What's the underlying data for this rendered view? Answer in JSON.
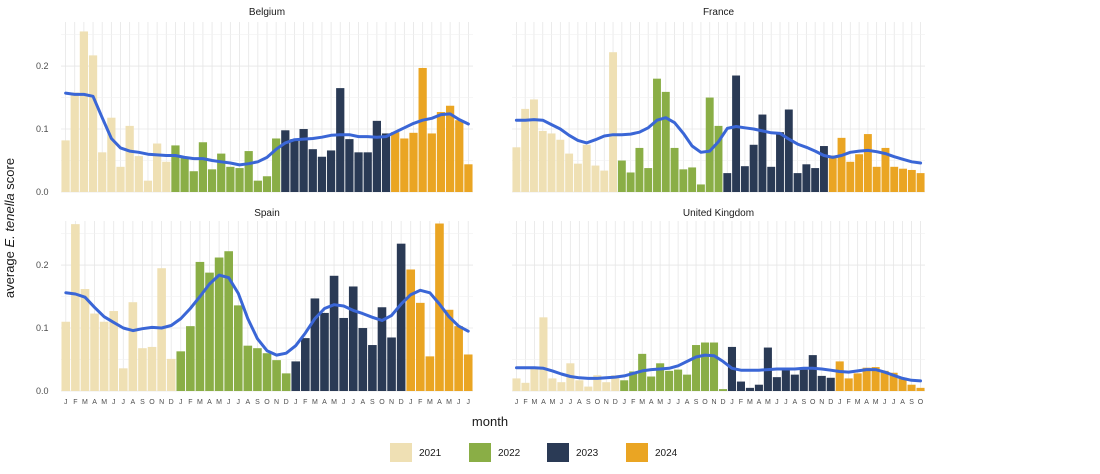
{
  "chart_data": {
    "type": "bar",
    "ylabel_pre": "average ",
    "ylabel_italic": "E. tenella",
    "ylabel_post": " score",
    "xlabel": "month",
    "ylim": [
      0,
      0.27
    ],
    "yticks": [
      "0.0",
      "0.1",
      "0.2"
    ],
    "ytick_values": [
      0,
      0.1,
      0.2
    ],
    "month_letters": [
      "J",
      "F",
      "M",
      "A",
      "M",
      "J",
      "J",
      "A",
      "S",
      "O",
      "N",
      "D"
    ],
    "legend": [
      {
        "year": "2021",
        "color": "#efe0b4"
      },
      {
        "year": "2022",
        "color": "#8aae46"
      },
      {
        "year": "2023",
        "color": "#2a3a55"
      },
      {
        "year": "2024",
        "color": "#eaa523"
      }
    ],
    "trend_color": "#3a66d6",
    "panels": [
      {
        "name": "Belgium",
        "values": [
          0.082,
          0.158,
          0.255,
          0.217,
          0.063,
          0.118,
          0.04,
          0.105,
          0.057,
          0.018,
          0.077,
          0.048,
          0.074,
          0.055,
          0.033,
          0.079,
          0.036,
          0.061,
          0.04,
          0.038,
          0.065,
          0.018,
          0.025,
          0.085,
          0.098,
          0.084,
          0.1,
          0.068,
          0.056,
          0.066,
          0.165,
          0.084,
          0.063,
          0.063,
          0.113,
          0.093,
          0.095,
          0.085,
          0.094,
          0.197,
          0.093,
          0.127,
          0.137,
          0.114,
          0.044
        ],
        "trend": [
          0.157,
          0.155,
          0.155,
          0.152,
          0.118,
          0.085,
          0.07,
          0.065,
          0.063,
          0.06,
          0.059,
          0.058,
          0.058,
          0.055,
          0.053,
          0.053,
          0.05,
          0.048,
          0.046,
          0.043,
          0.045,
          0.048,
          0.055,
          0.068,
          0.078,
          0.083,
          0.084,
          0.085,
          0.087,
          0.09,
          0.091,
          0.091,
          0.088,
          0.088,
          0.087,
          0.088,
          0.095,
          0.102,
          0.109,
          0.114,
          0.117,
          0.123,
          0.124,
          0.115,
          0.108
        ]
      },
      {
        "name": "France",
        "values": [
          0.071,
          0.132,
          0.147,
          0.097,
          0.093,
          0.083,
          0.061,
          0.045,
          0.075,
          0.042,
          0.034,
          0.222,
          0.05,
          0.031,
          0.07,
          0.038,
          0.18,
          0.159,
          0.07,
          0.036,
          0.039,
          0.012,
          0.15,
          0.105,
          0.03,
          0.185,
          0.041,
          0.075,
          0.123,
          0.04,
          0.095,
          0.131,
          0.03,
          0.044,
          0.038,
          0.073,
          0.058,
          0.086,
          0.048,
          0.06,
          0.092,
          0.04,
          0.07,
          0.04,
          0.037,
          0.035,
          0.03
        ],
        "trend": [
          0.114,
          0.114,
          0.115,
          0.114,
          0.107,
          0.1,
          0.09,
          0.082,
          0.078,
          0.083,
          0.089,
          0.091,
          0.091,
          0.092,
          0.095,
          0.102,
          0.114,
          0.118,
          0.11,
          0.093,
          0.073,
          0.063,
          0.065,
          0.08,
          0.101,
          0.104,
          0.102,
          0.1,
          0.097,
          0.094,
          0.093,
          0.084,
          0.076,
          0.071,
          0.065,
          0.058,
          0.055,
          0.058,
          0.063,
          0.065,
          0.066,
          0.064,
          0.061,
          0.056,
          0.052,
          0.048,
          0.046
        ]
      },
      {
        "name": "Spain",
        "values": [
          0.11,
          0.265,
          0.162,
          0.123,
          0.11,
          0.127,
          0.036,
          0.141,
          0.068,
          0.07,
          0.195,
          0.051,
          0.063,
          0.103,
          0.205,
          0.188,
          0.212,
          0.222,
          0.136,
          0.072,
          0.068,
          0.06,
          0.049,
          0.028,
          0.047,
          0.084,
          0.147,
          0.124,
          0.183,
          0.116,
          0.166,
          0.1,
          0.073,
          0.133,
          0.085,
          0.234,
          0.193,
          0.14,
          0.055,
          0.266,
          0.129,
          0.103,
          0.058
        ],
        "trend": [
          0.156,
          0.154,
          0.149,
          0.133,
          0.118,
          0.109,
          0.1,
          0.096,
          0.099,
          0.101,
          0.1,
          0.104,
          0.115,
          0.131,
          0.15,
          0.17,
          0.184,
          0.18,
          0.155,
          0.115,
          0.083,
          0.064,
          0.057,
          0.06,
          0.072,
          0.092,
          0.115,
          0.131,
          0.137,
          0.135,
          0.128,
          0.123,
          0.117,
          0.112,
          0.12,
          0.138,
          0.153,
          0.16,
          0.156,
          0.138,
          0.118,
          0.103,
          0.095
        ]
      },
      {
        "name": "United Kingdom",
        "values": [
          0.02,
          0.013,
          0.037,
          0.117,
          0.02,
          0.014,
          0.044,
          0.017,
          0.007,
          0.025,
          0.014,
          0.025,
          0.017,
          0.031,
          0.059,
          0.023,
          0.044,
          0.032,
          0.034,
          0.026,
          0.073,
          0.077,
          0.077,
          0.003,
          0.07,
          0.015,
          0.005,
          0.01,
          0.069,
          0.022,
          0.033,
          0.026,
          0.034,
          0.057,
          0.024,
          0.021,
          0.047,
          0.02,
          0.028,
          0.037,
          0.038,
          0.032,
          0.029,
          0.021,
          0.01,
          0.005
        ],
        "trend": [
          0.037,
          0.037,
          0.037,
          0.036,
          0.032,
          0.027,
          0.023,
          0.021,
          0.02,
          0.02,
          0.021,
          0.022,
          0.024,
          0.028,
          0.032,
          0.034,
          0.035,
          0.036,
          0.04,
          0.047,
          0.054,
          0.057,
          0.056,
          0.047,
          0.036,
          0.033,
          0.033,
          0.033,
          0.034,
          0.035,
          0.035,
          0.035,
          0.036,
          0.036,
          0.035,
          0.033,
          0.031,
          0.03,
          0.032,
          0.034,
          0.034,
          0.03,
          0.025,
          0.02,
          0.017,
          0.016
        ]
      }
    ]
  }
}
